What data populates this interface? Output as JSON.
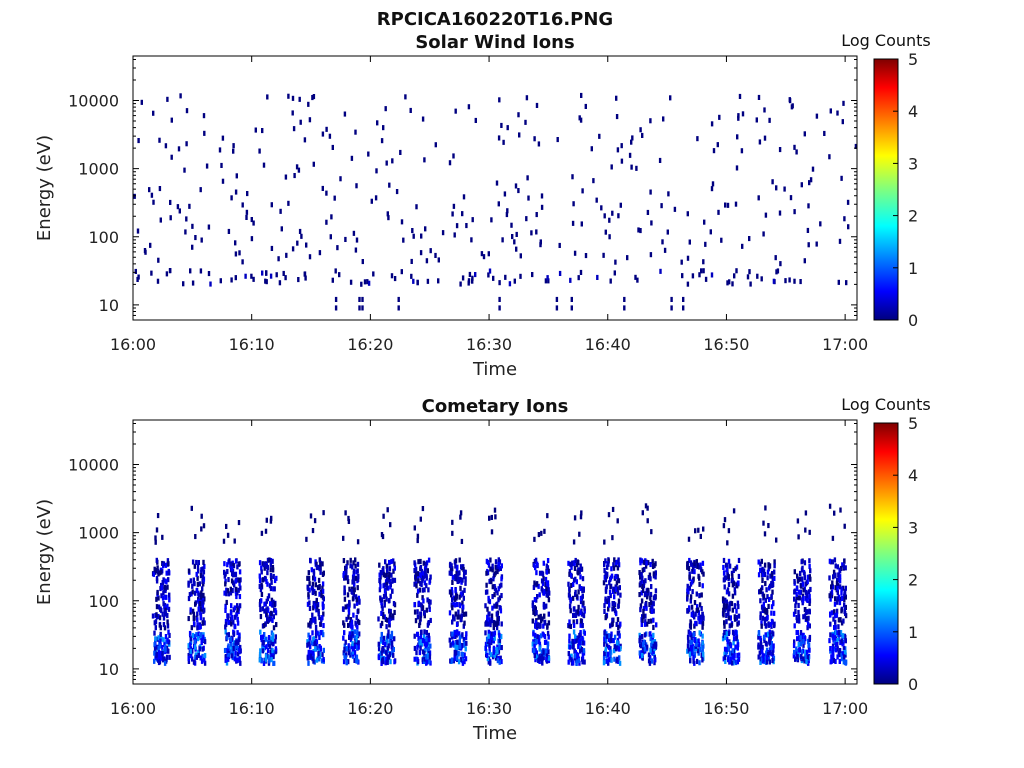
{
  "figure": {
    "title": "RPCICA160220T16.PNG"
  },
  "colorbar": {
    "label": "Log Counts",
    "ticks": [
      "0",
      "1",
      "2",
      "3",
      "4",
      "5"
    ],
    "range": [
      0,
      5
    ],
    "colors": [
      "#00007f",
      "#0000ff",
      "#007fff",
      "#00ffff",
      "#7fff7f",
      "#ffff00",
      "#ff7f00",
      "#ff0000",
      "#7f0000"
    ]
  },
  "chart_data": [
    {
      "type": "heatmap",
      "title": "Solar Wind Ions",
      "xlabel": "Time",
      "ylabel": "Energy (eV)",
      "xlim": [
        "16:00",
        "17:01"
      ],
      "ylim": [
        6,
        45000
      ],
      "yscale": "log",
      "xticks": [
        "16:00",
        "16:10",
        "16:20",
        "16:30",
        "16:40",
        "16:50",
        "17:00"
      ],
      "yticks": [
        "10",
        "100",
        "1000",
        "10000"
      ],
      "color_scale": "Log Counts",
      "value_range": [
        0,
        5
      ],
      "pattern": "sparse single-count pixels (log counts ~0) scattered across 5 eV - 12 keV, densest near 20-30 eV",
      "bands": [
        {
          "energy_range": [
            20,
            32
          ],
          "log_counts": [
            0,
            0.3
          ]
        },
        {
          "energy_range": [
            40,
            300
          ],
          "log_counts": [
            0,
            0.2
          ]
        },
        {
          "energy_range": [
            300,
            12000
          ],
          "log_counts": [
            0,
            0.1
          ]
        }
      ]
    },
    {
      "type": "heatmap",
      "title": "Cometary Ions",
      "xlabel": "Time",
      "ylabel": "Energy (eV)",
      "xlim": [
        "16:00",
        "17:01"
      ],
      "ylim": [
        6,
        45000
      ],
      "yscale": "log",
      "xticks": [
        "16:00",
        "16:10",
        "16:20",
        "16:30",
        "16:40",
        "16:50",
        "17:00"
      ],
      "yticks": [
        "10",
        "100",
        "1000",
        "10000"
      ],
      "color_scale": "Log Counts",
      "value_range": [
        0,
        5
      ],
      "pattern": "periodic energy sweeps roughly every 3.2 minutes",
      "sweep_times": [
        "16:02",
        "16:05",
        "16:08",
        "16:11",
        "16:15",
        "16:18",
        "16:21",
        "16:24",
        "16:27",
        "16:30",
        "16:34",
        "16:37",
        "16:40",
        "16:43",
        "16:47",
        "16:50",
        "16:53",
        "16:56",
        "16:59"
      ],
      "bands": [
        {
          "energy_range": [
            12,
            35
          ],
          "log_counts": [
            0.3,
            1.3
          ]
        },
        {
          "energy_range": [
            40,
            400
          ],
          "log_counts": [
            0,
            0.8
          ]
        },
        {
          "energy_range": [
            700,
            2500
          ],
          "log_counts": [
            0,
            0.1
          ]
        }
      ]
    }
  ]
}
